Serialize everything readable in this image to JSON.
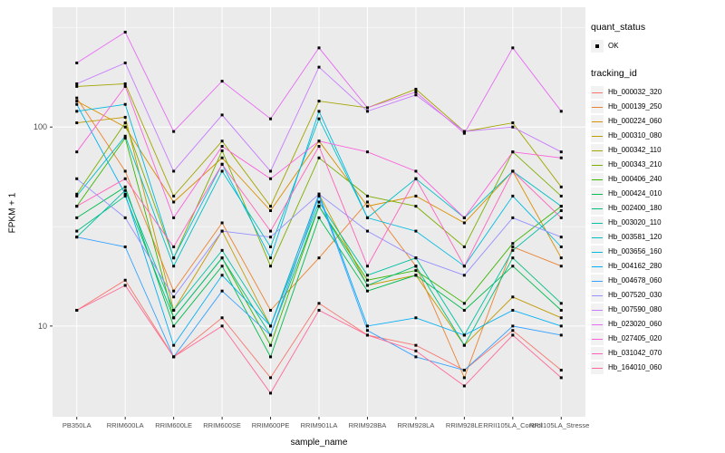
{
  "chart_data": {
    "type": "line",
    "title": "",
    "xlabel": "sample_name",
    "ylabel": "FPKM + 1",
    "y_scale": "log10",
    "ylim": [
      3.5,
      400
    ],
    "y_major_ticks": [
      10,
      100
    ],
    "y_minor_ticks": [
      31.6,
      316
    ],
    "panel_bg": "#EBEBEB",
    "grid_color": "#FFFFFF",
    "point_color": "#000000",
    "tick_label_color": "#4D4D4D",
    "categories": [
      "PB350LA",
      "RRIM600LA",
      "RRIM600LE",
      "RRIM600SE",
      "RRIM600PE",
      "RRIM901LA",
      "RRIM928BA",
      "RRIM928LA",
      "RRIM928LE",
      "RRII105LA_Control",
      "RRII105LA_Stressed"
    ],
    "series": [
      {
        "name": "Hb_000032_320",
        "color": "#F8766D",
        "values": [
          12,
          17,
          7,
          11,
          5.5,
          13,
          9,
          8,
          6,
          9.5,
          6
        ]
      },
      {
        "name": "Hb_000139_250",
        "color": "#EA8331",
        "values": [
          140,
          60,
          15,
          33,
          12,
          22,
          42,
          20,
          5.5,
          25,
          20
        ]
      },
      {
        "name": "Hb_000224_060",
        "color": "#D89000",
        "values": [
          135,
          100,
          42,
          70,
          38,
          85,
          40,
          45,
          33,
          60,
          22
        ]
      },
      {
        "name": "Hb_000310_080",
        "color": "#C09B00",
        "values": [
          105,
          112,
          12,
          30,
          10,
          46,
          16,
          18,
          8,
          14,
          11
        ]
      },
      {
        "name": "Hb_000342_110",
        "color": "#A3A500",
        "values": [
          160,
          165,
          45,
          85,
          40,
          135,
          125,
          155,
          95,
          105,
          50
        ]
      },
      {
        "name": "Hb_000343_210",
        "color": "#7CAE00",
        "values": [
          46,
          105,
          22,
          76,
          20,
          70,
          45,
          40,
          25,
          75,
          45
        ]
      },
      {
        "name": "Hb_000406_240",
        "color": "#39B600",
        "values": [
          40,
          88,
          11,
          22,
          8,
          40,
          17,
          19,
          13,
          26,
          40
        ]
      },
      {
        "name": "Hb_000424_010",
        "color": "#00BB4E",
        "values": [
          35,
          50,
          10,
          20,
          7,
          35,
          15,
          18,
          12,
          20,
          12
        ]
      },
      {
        "name": "Hb_002400_180",
        "color": "#00BF7D",
        "values": [
          30,
          45,
          11,
          22,
          9,
          40,
          16,
          20,
          8,
          22,
          13
        ]
      },
      {
        "name": "Hb_003020_110",
        "color": "#00C1A3",
        "values": [
          28,
          48,
          12,
          24,
          10,
          42,
          18,
          22,
          9,
          24,
          38
        ]
      },
      {
        "name": "Hb_003581_120",
        "color": "#00BFC4",
        "values": [
          45,
          90,
          20,
          60,
          25,
          110,
          35,
          55,
          35,
          60,
          40
        ]
      },
      {
        "name": "Hb_003656_160",
        "color": "#00BAE0",
        "values": [
          120,
          130,
          22,
          65,
          22,
          120,
          35,
          30,
          20,
          45,
          25
        ]
      },
      {
        "name": "Hb_004162_280",
        "color": "#00B0F6",
        "values": [
          130,
          46,
          8,
          18,
          10,
          46,
          10,
          11,
          9,
          12,
          10
        ]
      },
      {
        "name": "Hb_004678_060",
        "color": "#35A2FF",
        "values": [
          28,
          25,
          7,
          15,
          9,
          45,
          9.5,
          7,
          6,
          10,
          9
        ]
      },
      {
        "name": "Hb_007520_030",
        "color": "#9590FF",
        "values": [
          55,
          35,
          14,
          30,
          28,
          46,
          30,
          22,
          18,
          35,
          28
        ]
      },
      {
        "name": "Hb_007590_080",
        "color": "#C77CFF",
        "values": [
          165,
          210,
          60,
          115,
          60,
          200,
          120,
          145,
          95,
          100,
          75
        ]
      },
      {
        "name": "Hb_023020_060",
        "color": "#E76BF3",
        "values": [
          210,
          300,
          95,
          170,
          110,
          250,
          125,
          150,
          93,
          250,
          120
        ]
      },
      {
        "name": "Hb_027405_020",
        "color": "#FA62DB",
        "values": [
          75,
          160,
          35,
          80,
          55,
          85,
          75,
          60,
          35,
          75,
          70
        ]
      },
      {
        "name": "Hb_031042_070",
        "color": "#FF62BC",
        "values": [
          40,
          55,
          25,
          65,
          30,
          80,
          20,
          55,
          20,
          60,
          35
        ]
      },
      {
        "name": "Hb_164010_060",
        "color": "#FF6A98",
        "values": [
          12,
          16,
          7,
          10,
          4.6,
          12,
          9,
          7.5,
          5,
          9,
          5.5
        ]
      }
    ],
    "legend": {
      "quant_status_title": "quant_status",
      "quant_status_items": [
        {
          "label": "OK"
        }
      ],
      "tracking_title": "tracking_id"
    }
  }
}
